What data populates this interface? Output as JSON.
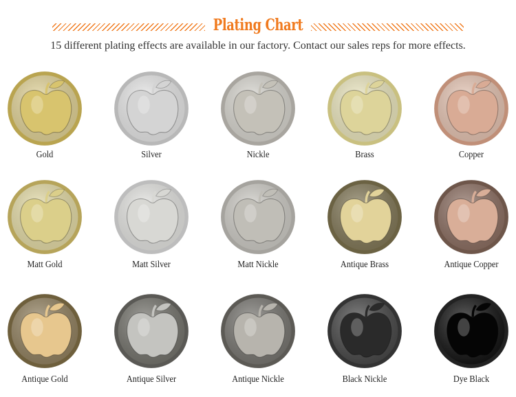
{
  "header": {
    "title": "Plating Chart",
    "subtitle": "15 different plating effects are available in our factory. Contact our sales reps for more effects.",
    "accent_color": "#f07a1e"
  },
  "plates": [
    {
      "label": "Gold",
      "rim": "#b9a450",
      "field": "#e6d79a",
      "apple": "#d8c46e"
    },
    {
      "label": "Silver",
      "rim": "#b8b8b8",
      "field": "#ececec",
      "apple": "#d4d4d4"
    },
    {
      "label": "Nickle",
      "rim": "#a8a59f",
      "field": "#dcdad3",
      "apple": "#c4c1b8"
    },
    {
      "label": "Brass",
      "rim": "#c9c080",
      "field": "#f0ebc2",
      "apple": "#ddd49a"
    },
    {
      "label": "Copper",
      "rim": "#c08f78",
      "field": "#eac8b6",
      "apple": "#d9ab95"
    },
    {
      "label": "Matt Gold",
      "rim": "#b6a45a",
      "field": "#e9e0aa",
      "apple": "#dbcf8a"
    },
    {
      "label": "Matt Silver",
      "rim": "#bdbdbd",
      "field": "#e9e9e6",
      "apple": "#d8d8d4"
    },
    {
      "label": "Matt Nickle",
      "rim": "#a5a39e",
      "field": "#d2d0ca",
      "apple": "#c0beb7"
    },
    {
      "label": "Antique Brass",
      "rim": "#6b6243",
      "field": "#857b5a",
      "apple": "#e2d39a"
    },
    {
      "label": "Antique Copper",
      "rim": "#6e564a",
      "field": "#8f7164",
      "apple": "#d9ae98"
    },
    {
      "label": "Antique Gold",
      "rim": "#6e5f3c",
      "field": "#958462",
      "apple": "#e7c78e"
    },
    {
      "label": "Antique Silver",
      "rim": "#5a5955",
      "field": "#77766f",
      "apple": "#c4c4c0"
    },
    {
      "label": "Antique Nickle",
      "rim": "#5c5a55",
      "field": "#7a7873",
      "apple": "#b7b4ad"
    },
    {
      "label": "Black Nickle",
      "rim": "#333333",
      "field": "#4a4a4a",
      "apple": "#2a2a2a"
    },
    {
      "label": "Dye Black",
      "rim": "#222222",
      "field": "#141414",
      "apple": "#050505"
    }
  ]
}
